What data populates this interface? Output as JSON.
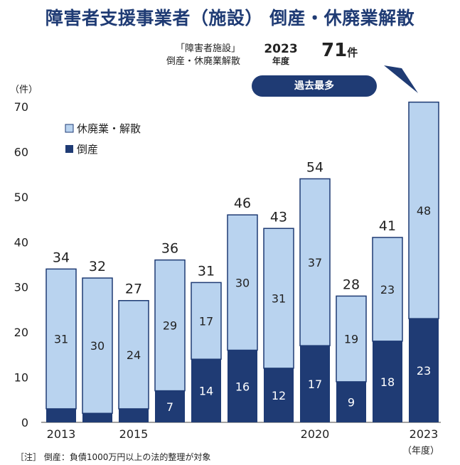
{
  "title": "障害者支援事業者（施設） 倒産・休廃業解散",
  "callout": {
    "label_line1": "「障害者施設」",
    "label_line2": "倒産・休廃業解散",
    "year": "2023",
    "year_unit": "年度",
    "value": "71",
    "value_unit": "件",
    "badge": "過去最多"
  },
  "note": "［注］ 倒産：負債1000万円以上の法的整理が対象",
  "colors": {
    "bankruptcy": "#1f3b74",
    "closure": "#b9d3ef",
    "outline": "#1f3b74"
  },
  "chart_data": {
    "type": "bar",
    "stacked": true,
    "categories": [
      "2013",
      "2014",
      "2015",
      "2016",
      "2017",
      "2018",
      "2019",
      "2020",
      "2021",
      "2022",
      "2023"
    ],
    "x_tick_labels": [
      "2013",
      "",
      "2015",
      "",
      "",
      "",
      "",
      "2020",
      "",
      "",
      "2023"
    ],
    "series": [
      {
        "name": "倒産",
        "values": [
          3,
          2,
          3,
          7,
          14,
          16,
          12,
          17,
          9,
          18,
          23
        ],
        "value_labels": [
          "",
          "",
          "",
          "7",
          "14",
          "16",
          "12",
          "17",
          "9",
          "18",
          "23"
        ]
      },
      {
        "name": "休廃業・解散",
        "values": [
          31,
          30,
          24,
          29,
          17,
          30,
          31,
          37,
          19,
          23,
          48
        ],
        "value_labels": [
          "31",
          "30",
          "24",
          "29",
          "17",
          "30",
          "31",
          "37",
          "19",
          "23",
          "48"
        ]
      }
    ],
    "totals": [
      34,
      32,
      27,
      36,
      31,
      46,
      43,
      54,
      28,
      41,
      71
    ],
    "total_labels": [
      "34",
      "32",
      "27",
      "36",
      "31",
      "46",
      "43",
      "54",
      "28",
      "41",
      ""
    ],
    "ylabel": "（件）",
    "xlabel": "（年度）",
    "ylim": [
      0,
      70
    ],
    "yticks": [
      0,
      10,
      20,
      30,
      40,
      50,
      60,
      70
    ],
    "grid": false,
    "legend": "top-left"
  }
}
